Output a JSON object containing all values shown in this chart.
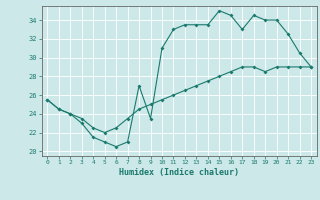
{
  "xlabel": "Humidex (Indice chaleur)",
  "bg_color": "#cce8e8",
  "line_color": "#1a7a6e",
  "grid_color": "#ffffff",
  "xlim": [
    -0.5,
    23.5
  ],
  "ylim": [
    19.5,
    35.5
  ],
  "xticks": [
    0,
    1,
    2,
    3,
    4,
    5,
    6,
    7,
    8,
    9,
    10,
    11,
    12,
    13,
    14,
    15,
    16,
    17,
    18,
    19,
    20,
    21,
    22,
    23
  ],
  "yticks": [
    20,
    22,
    24,
    26,
    28,
    30,
    32,
    34
  ],
  "curve1_x": [
    0,
    1,
    2,
    3,
    4,
    5,
    6,
    7,
    8,
    9,
    10,
    11,
    12,
    13,
    14,
    15,
    16,
    17,
    18,
    19,
    20,
    21,
    22,
    23
  ],
  "curve1_y": [
    25.5,
    24.5,
    24.0,
    23.0,
    21.5,
    21.0,
    20.5,
    21.0,
    27.0,
    23.5,
    31.0,
    33.0,
    33.5,
    33.5,
    33.5,
    35.0,
    34.5,
    33.0,
    34.5,
    34.0,
    34.0,
    32.5,
    30.5,
    29.0
  ],
  "curve2_x": [
    0,
    1,
    2,
    3,
    4,
    5,
    6,
    7,
    8,
    9,
    10,
    11,
    12,
    13,
    14,
    15,
    16,
    17,
    18,
    19,
    20,
    21,
    22,
    23
  ],
  "curve2_y": [
    25.5,
    24.5,
    24.0,
    23.5,
    22.5,
    22.0,
    22.5,
    23.5,
    24.5,
    25.0,
    25.5,
    26.0,
    26.5,
    27.0,
    27.5,
    28.0,
    28.5,
    29.0,
    29.0,
    28.5,
    29.0,
    29.0,
    29.0,
    29.0
  ]
}
